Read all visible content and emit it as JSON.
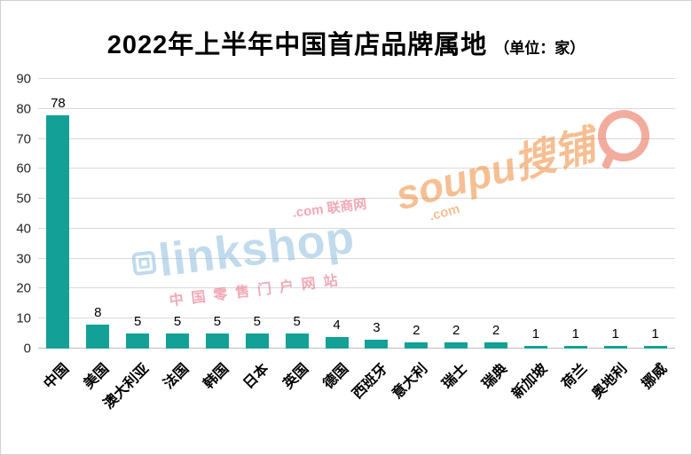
{
  "title": "2022年上半年中国首店品牌属地",
  "unit_label": "（单位：家）",
  "colors": {
    "bar": "#13a097",
    "gridline": "#d9d9d9",
    "linkshop_blue": "#8fbede",
    "linkshop_pink": "#e8647e",
    "soupu_orange": "#ef8c3c"
  },
  "watermarks": {
    "linkshop_top": ".com 联商网",
    "linkshop_main": "linkshop",
    "linkshop_sub": "中国零售门户网站",
    "soupu_main": "soupu搜铺",
    "soupu_dotcom": ".com"
  },
  "chart_data": {
    "type": "bar",
    "title": "2022年上半年中国首店品牌属地",
    "unit": "家",
    "categories": [
      "中国",
      "美国",
      "澳大利亚",
      "法国",
      "韩国",
      "日本",
      "英国",
      "德国",
      "西班牙",
      "意大利",
      "瑞士",
      "瑞典",
      "新加坡",
      "荷兰",
      "奥地利",
      "挪威"
    ],
    "values": [
      78,
      8,
      5,
      5,
      5,
      5,
      5,
      4,
      3,
      2,
      2,
      2,
      1,
      1,
      1,
      1
    ],
    "xlabel": "",
    "ylabel": "",
    "ylim": [
      0,
      90
    ],
    "ytick_step": 10,
    "grid": true,
    "legend": false,
    "bar_color": "#13a097"
  }
}
